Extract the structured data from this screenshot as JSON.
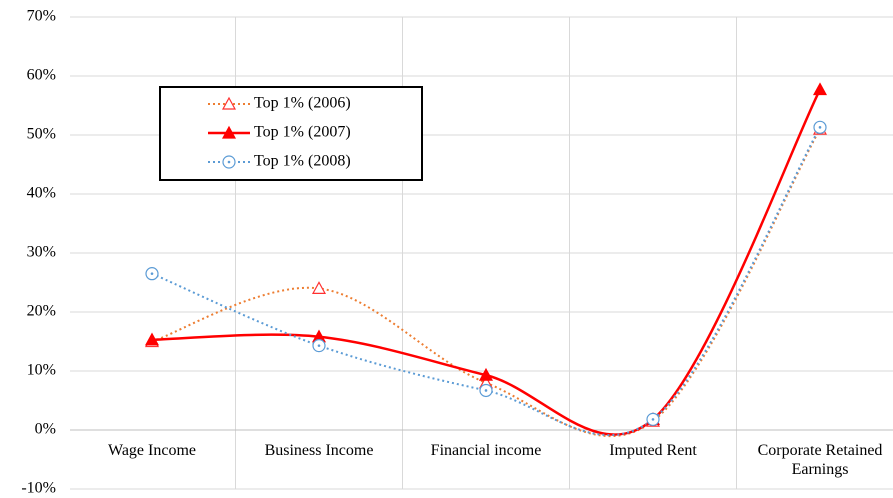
{
  "chart_data": {
    "type": "line",
    "smooth": true,
    "categories": [
      "Wage Income",
      "Business Income",
      "Financial income",
      "Imputed Rent",
      "Corporate Retained Earnings"
    ],
    "series": [
      {
        "name": "Top 1% (2006)",
        "color": "#ed7d31",
        "marker_color": "#ff3030",
        "dash": "dotted",
        "marker": "triangle-open",
        "values": [
          15,
          24,
          8,
          1.5,
          51
        ]
      },
      {
        "name": "Top 1% (2007)",
        "color": "#ff0000",
        "marker_color": "#ff0000",
        "dash": "solid",
        "marker": "triangle-filled",
        "values": [
          15.3,
          15.8,
          9.3,
          1.8,
          57.7
        ]
      },
      {
        "name": "Top 1% (2008)",
        "color": "#5b9bd5",
        "marker_color": "#5b9bd5",
        "dash": "dotted",
        "marker": "circle-dot",
        "values": [
          26.5,
          14.3,
          6.7,
          1.8,
          51.3
        ]
      }
    ],
    "ylim": [
      -10,
      70
    ],
    "yticks": [
      {
        "value": -10,
        "label": "-10%"
      },
      {
        "value": 0,
        "label": "0%"
      },
      {
        "value": 10,
        "label": "10%"
      },
      {
        "value": 20,
        "label": "20%"
      },
      {
        "value": 30,
        "label": "30%"
      },
      {
        "value": 40,
        "label": "40%"
      },
      {
        "value": 50,
        "label": "50%"
      },
      {
        "value": 60,
        "label": "60%"
      },
      {
        "value": 70,
        "label": "70%"
      }
    ],
    "grid": true,
    "legend": "upper left"
  }
}
